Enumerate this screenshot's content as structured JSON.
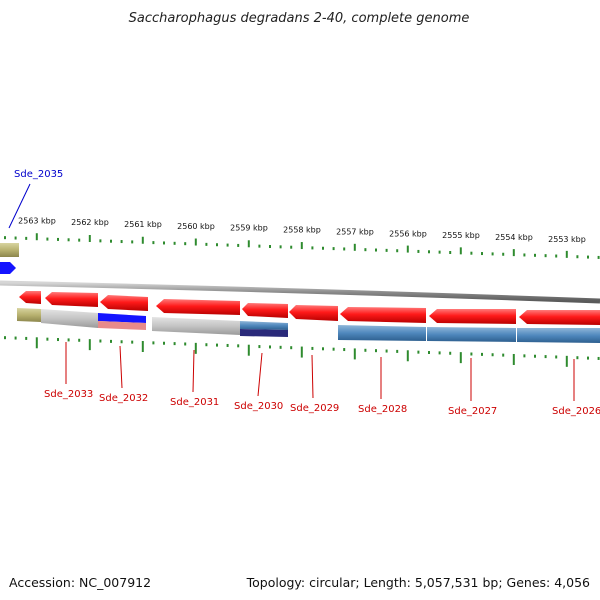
{
  "title": "Saccharophagus degradans 2-40, complete genome",
  "footer": {
    "accession": "Accession: NC_007912",
    "topology": "Topology: circular; Length: 5,057,531 bp; Genes: 4,056"
  },
  "colors": {
    "backbone": "#8c8c8c",
    "tick": "#2e8b2e",
    "gene_forward": "#ff1a1a",
    "blue_gene": "#1414ff",
    "label_red": "#cc0000",
    "label_blue": "#0000cc"
  },
  "scale": {
    "unit": "kbp",
    "labels": [
      "2563 kbp",
      "2562 kbp",
      "2561 kbp",
      "2560 kbp",
      "2559 kbp",
      "2558 kbp",
      "2557 kbp",
      "2556 kbp",
      "2555 kbp",
      "2554 kbp",
      "2553 kbp"
    ]
  },
  "genes": [
    {
      "name": "Sde_2035",
      "label_color": "blue"
    },
    {
      "name": "Sde_2033",
      "label_color": "red"
    },
    {
      "name": "Sde_2032",
      "label_color": "red"
    },
    {
      "name": "Sde_2031",
      "label_color": "red"
    },
    {
      "name": "Sde_2030",
      "label_color": "red"
    },
    {
      "name": "Sde_2029",
      "label_color": "red"
    },
    {
      "name": "Sde_2028",
      "label_color": "red"
    },
    {
      "name": "Sde_2027",
      "label_color": "red"
    },
    {
      "name": "Sde_2026",
      "label_color": "red"
    }
  ]
}
